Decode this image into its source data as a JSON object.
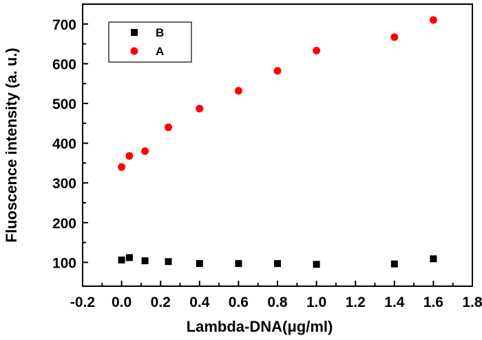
{
  "chart_data": {
    "type": "scatter",
    "title": "",
    "xlabel": "Lambda-DNA(μg/ml)",
    "ylabel": "Fluoscence intensity (a. u.)",
    "xlim": [
      -0.2,
      1.8
    ],
    "ylim": [
      40,
      750
    ],
    "xticks": [
      -0.2,
      0.0,
      0.2,
      0.4,
      0.6,
      0.8,
      1.0,
      1.2,
      1.4,
      1.6,
      1.8
    ],
    "xtick_labels": [
      "-0.2",
      "0.0",
      "0.2",
      "0.4",
      "0.6",
      "0.8",
      "1.0",
      "1.2",
      "1.4",
      "1.6",
      "1.8"
    ],
    "yticks": [
      100,
      200,
      300,
      400,
      500,
      600,
      700
    ],
    "ytick_labels": [
      "100",
      "200",
      "300",
      "400",
      "500",
      "600",
      "700"
    ],
    "legend_position": "top-left",
    "grid": false,
    "series": [
      {
        "name": "B",
        "marker": "square",
        "color": "#000000",
        "points": [
          {
            "x": 0.0,
            "y": 106
          },
          {
            "x": 0.04,
            "y": 112
          },
          {
            "x": 0.12,
            "y": 104
          },
          {
            "x": 0.24,
            "y": 102
          },
          {
            "x": 0.4,
            "y": 97
          },
          {
            "x": 0.6,
            "y": 97
          },
          {
            "x": 0.8,
            "y": 97
          },
          {
            "x": 1.0,
            "y": 95
          },
          {
            "x": 1.4,
            "y": 96
          },
          {
            "x": 1.6,
            "y": 109
          }
        ]
      },
      {
        "name": "A",
        "marker": "circle",
        "color": "#ff0000",
        "points": [
          {
            "x": 0.0,
            "y": 340
          },
          {
            "x": 0.04,
            "y": 368
          },
          {
            "x": 0.12,
            "y": 380
          },
          {
            "x": 0.24,
            "y": 440
          },
          {
            "x": 0.4,
            "y": 487
          },
          {
            "x": 0.6,
            "y": 532
          },
          {
            "x": 0.8,
            "y": 582
          },
          {
            "x": 1.0,
            "y": 633
          },
          {
            "x": 1.4,
            "y": 667
          },
          {
            "x": 1.6,
            "y": 710
          }
        ]
      }
    ]
  }
}
